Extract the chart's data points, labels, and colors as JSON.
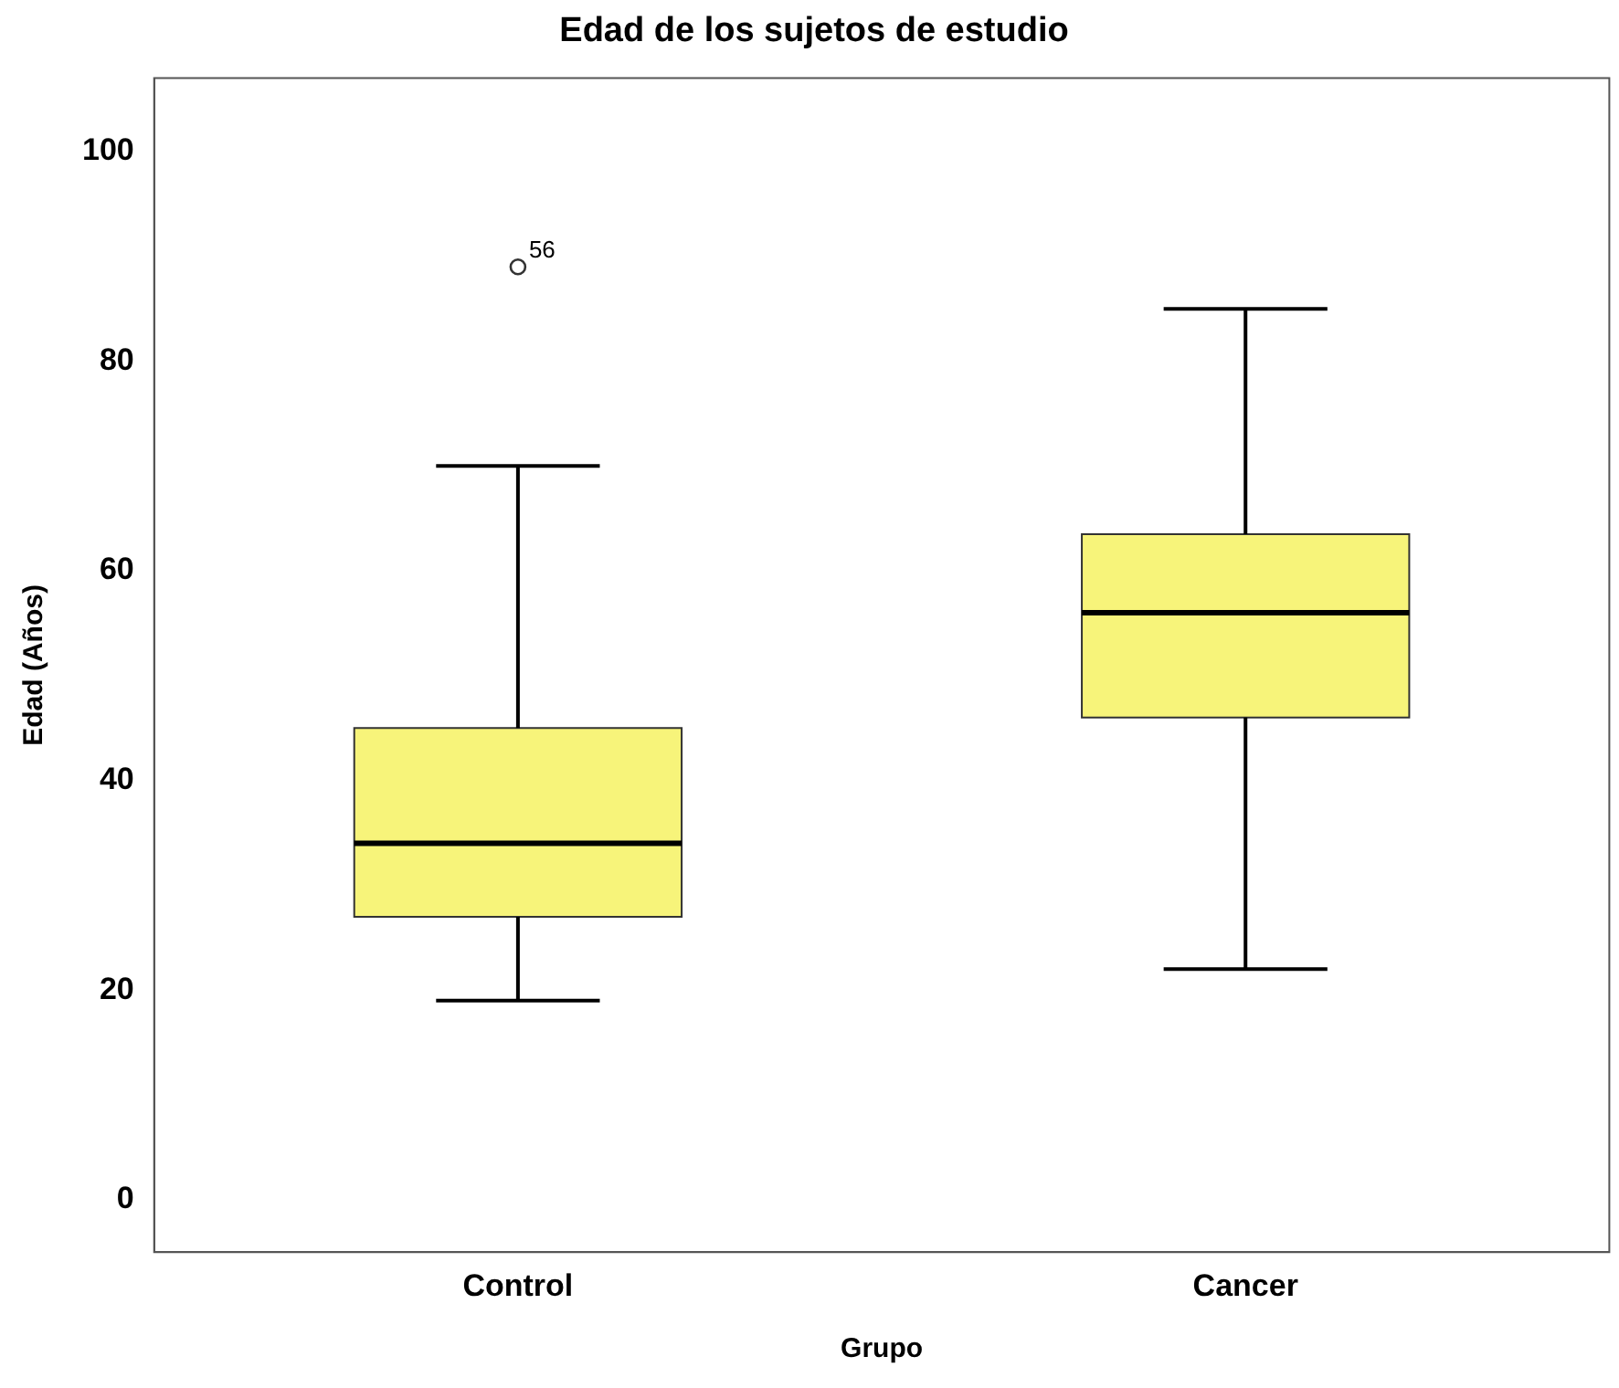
{
  "chart_data": {
    "type": "box",
    "title": "Edad de los sujetos de estudio",
    "xlabel": "Grupo",
    "ylabel": "Edad (Años)",
    "categories": [
      "Control",
      "Cancer"
    ],
    "boxes": [
      {
        "low": 19,
        "q1": 27,
        "median": 34,
        "q3": 45,
        "high": 70,
        "outliers": [
          89
        ]
      },
      {
        "low": 22,
        "q1": 46,
        "median": 56,
        "q3": 63.5,
        "high": 85
      }
    ],
    "color": "#f7f47a",
    "ylim": [
      -5,
      107
    ],
    "yticks": [
      0,
      20,
      40,
      60,
      80,
      100
    ],
    "grid": false,
    "legend": false,
    "marker": "circle",
    "annotations": [
      "56"
    ]
  }
}
